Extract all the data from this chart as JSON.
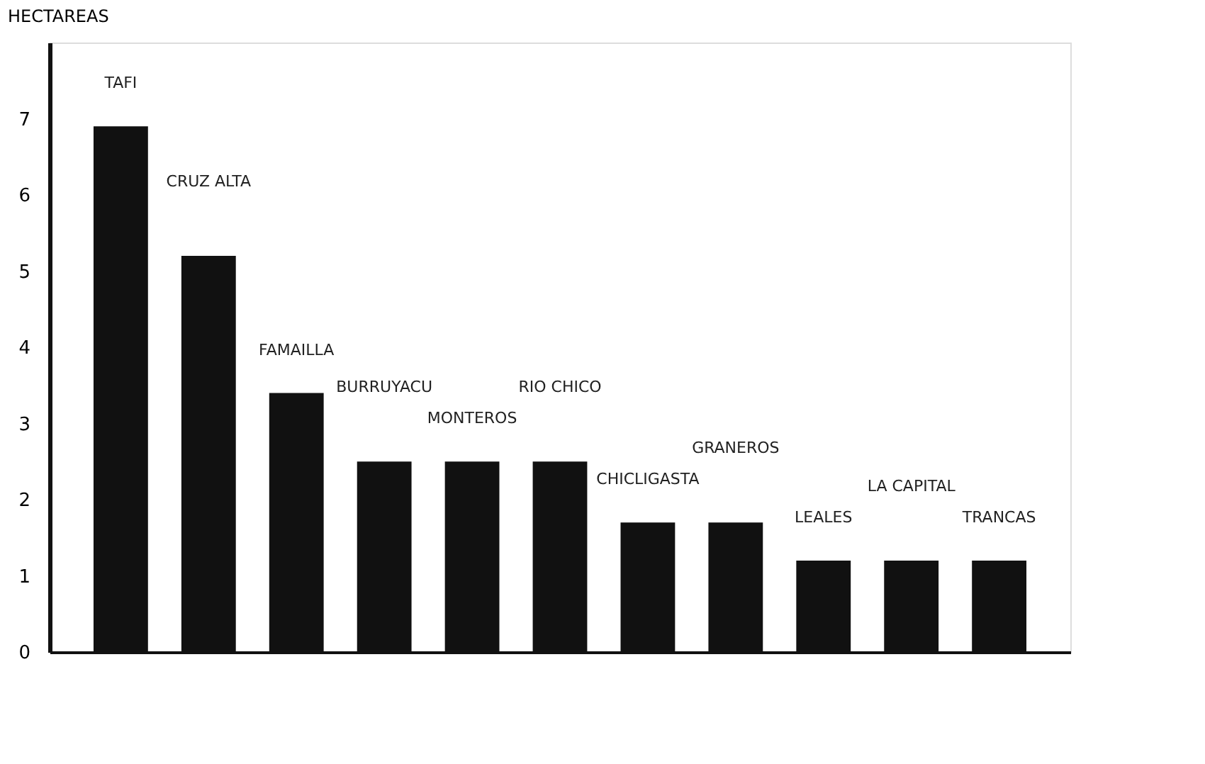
{
  "chart_data": {
    "type": "bar",
    "ylabel": "HECTAREAS",
    "categories": [
      "TAFI",
      "CRUZ ALTA",
      "FAMAILLA",
      "BURRUYACU",
      "MONTEROS",
      "RIO CHICO",
      "CHICLIGASTA",
      "GRANEROS",
      "LEALES",
      "LA CAPITAL",
      "TRANCAS"
    ],
    "values": [
      6.9,
      5.2,
      3.4,
      2.5,
      2.5,
      2.5,
      1.7,
      1.7,
      1.2,
      1.2,
      1.2
    ],
    "color": "#111111",
    "ylim": [
      0,
      8
    ],
    "yticks": [
      0,
      1,
      2,
      3,
      4,
      5,
      6,
      7
    ],
    "grid": false,
    "tick_labels": "y"
  }
}
